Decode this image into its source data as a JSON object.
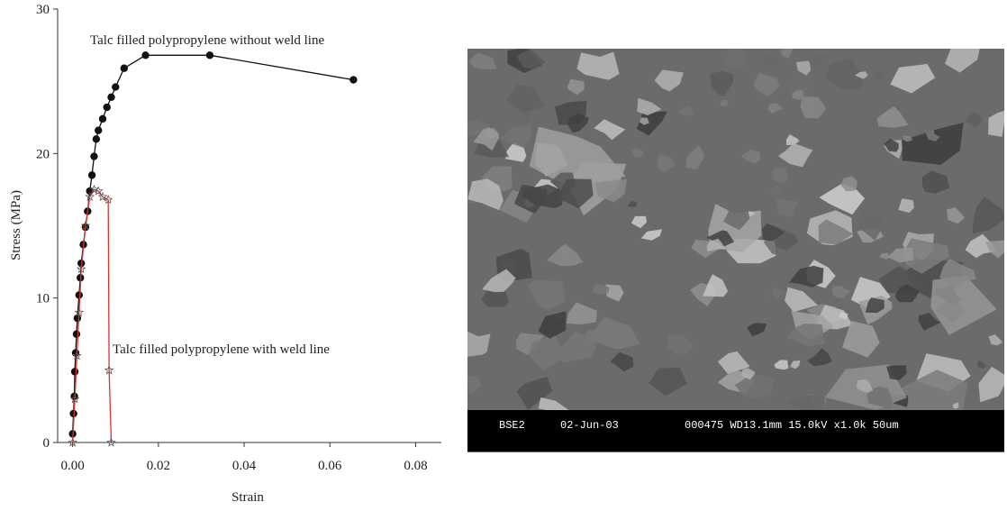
{
  "chart_data": {
    "type": "line",
    "xlabel": "Strain",
    "ylabel": "Stress (MPa)",
    "xlim": [
      -0.0035,
      0.086
    ],
    "ylim": [
      0,
      30
    ],
    "xticks": [
      {
        "value": 0,
        "label": "0.00"
      },
      {
        "value": 0.02,
        "label": "0.02"
      },
      {
        "value": 0.04,
        "label": "0.04"
      },
      {
        "value": 0.06,
        "label": "0.06"
      },
      {
        "value": 0.08,
        "label": "0.08"
      }
    ],
    "yticks": [
      0,
      10,
      20,
      30
    ],
    "annotations": [
      "Talc filled polypropylene without weld line",
      "Talc filled polypropylene with weld line"
    ],
    "series": [
      {
        "color": "#111111",
        "marker": "circle",
        "x": [
          0.0,
          0.0002,
          0.0004,
          0.0005,
          0.0007,
          0.0009,
          0.0011,
          0.0015,
          0.0018,
          0.002,
          0.0025,
          0.003,
          0.0035,
          0.004,
          0.0045,
          0.005,
          0.0055,
          0.006,
          0.007,
          0.008,
          0.009,
          0.01,
          0.012,
          0.017,
          0.032,
          0.0655
        ],
        "values": [
          0.6,
          2.0,
          3.2,
          4.9,
          6.2,
          7.5,
          8.6,
          10.2,
          11.4,
          12.4,
          13.7,
          14.9,
          16.0,
          17.4,
          18.5,
          19.8,
          21.0,
          21.6,
          22.4,
          23.2,
          23.9,
          24.6,
          25.9,
          26.8,
          26.8,
          25.1
        ]
      },
      {
        "color": "#e0302a",
        "marker": "star",
        "x": [
          0.0,
          0.0005,
          0.001,
          0.0015,
          0.002,
          0.003,
          0.004,
          0.005,
          0.006,
          0.007,
          0.0083,
          0.0085,
          0.009
        ],
        "values": [
          0.0,
          3.0,
          6.0,
          9.0,
          12.0,
          15.0,
          17.0,
          17.5,
          17.4,
          17.0,
          16.8,
          5.0,
          0.0
        ]
      }
    ]
  },
  "image": {
    "info": [
      "BSE2",
      "02-Jun-03",
      "000475 WD13.1mm 15.0kV x1.0k 50um"
    ]
  }
}
